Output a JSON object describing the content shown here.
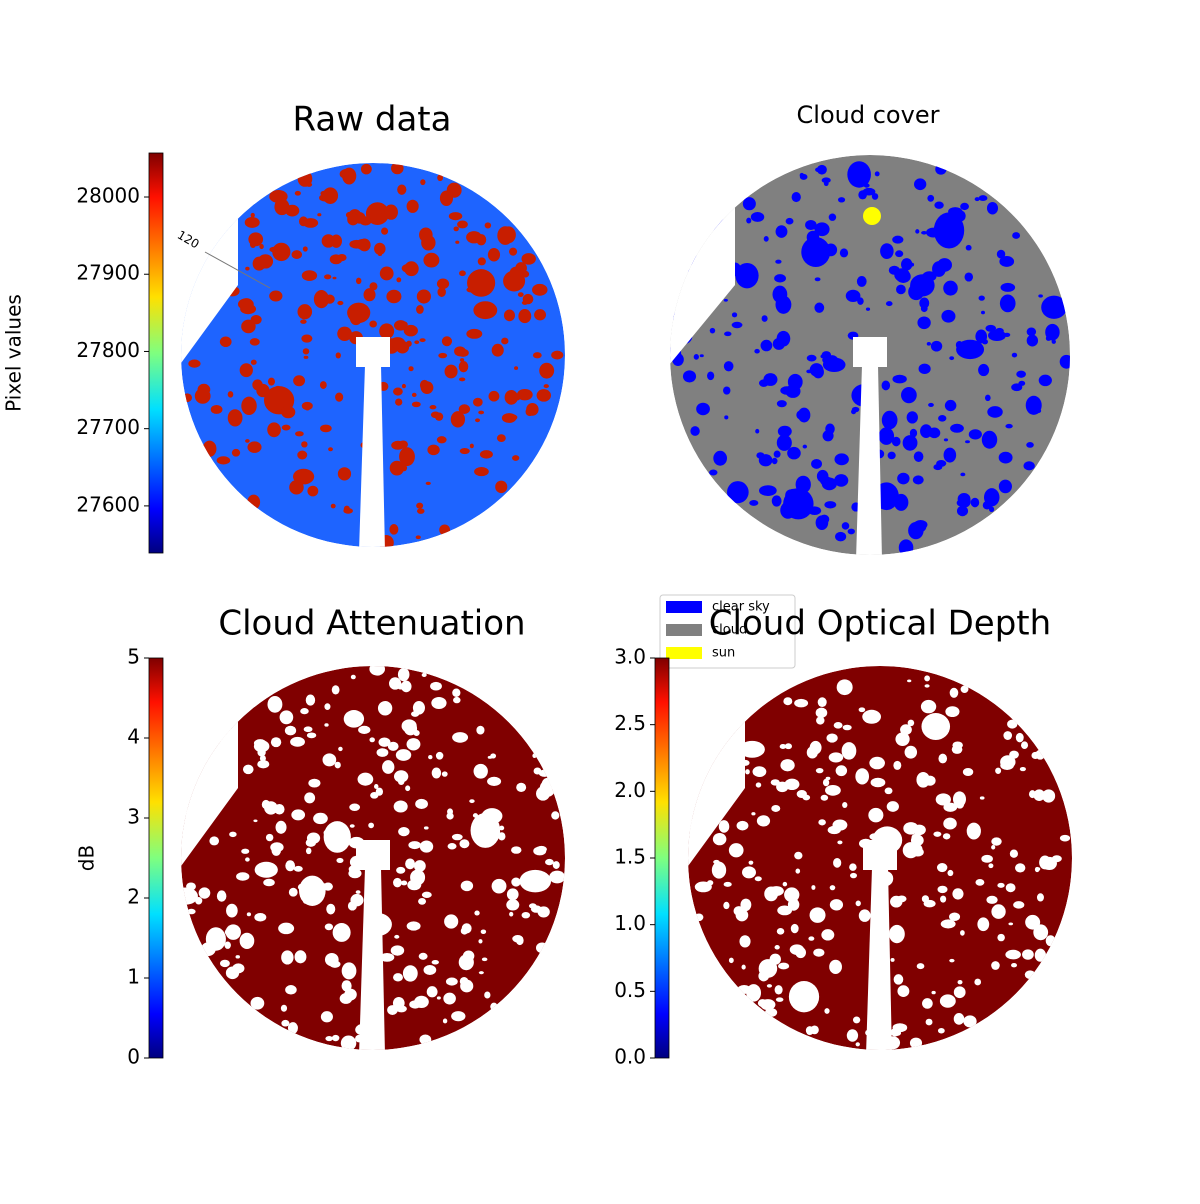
{
  "chart_data": [
    {
      "type": "image",
      "title": "Raw data",
      "colorbar_label": "Pixel values",
      "colormap": "jet",
      "cbarlim": [
        27539,
        28057
      ],
      "cbarticks": [
        27600,
        27700,
        27800,
        27900,
        28000
      ],
      "annotations": [
        "120"
      ],
      "color": "#1e64ff",
      "patch_color": "#c81e00"
    },
    {
      "type": "image",
      "title": "Cloud cover",
      "color": "#808080",
      "patch_color": "#0000ff",
      "legend": [
        {
          "name": "clear sky",
          "color": "#0000ff"
        },
        {
          "name": "cloud",
          "color": "#808080"
        },
        {
          "name": "sun",
          "color": "#ffff00"
        }
      ]
    },
    {
      "type": "image",
      "title": "Cloud Attenuation",
      "colorbar_label": "dB",
      "colormap": "jet",
      "cbarlim": [
        0,
        5
      ],
      "cbarticks": [
        0,
        1,
        2,
        3,
        4,
        5
      ],
      "color": "#800000",
      "patch_color": "#ffffff"
    },
    {
      "type": "image",
      "title": "Cloud Optical Depth",
      "colormap": "jet",
      "cbarlim": [
        0,
        3
      ],
      "cbarticks": [
        {
          "value": 0,
          "label": "0.0"
        },
        0.5,
        {
          "value": 1,
          "label": "1.0"
        },
        1.5,
        {
          "value": 2,
          "label": "2.0"
        },
        2.5,
        {
          "value": 3,
          "label": "3.0"
        }
      ],
      "color": "#800000",
      "patch_color": "#ffffff"
    }
  ]
}
